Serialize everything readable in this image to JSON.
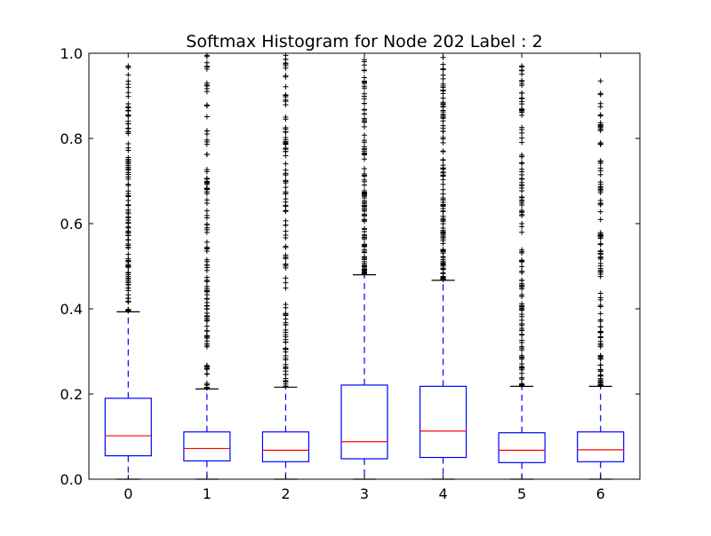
{
  "chart_data": {
    "type": "box",
    "title": "Softmax Histogram for Node 202 Label : 2",
    "xlabel": "",
    "ylabel": "",
    "ylim": [
      0.0,
      1.0
    ],
    "yticks": [
      "0.0",
      "0.2",
      "0.4",
      "0.6",
      "0.8",
      "1.0"
    ],
    "categories": [
      "0",
      "1",
      "2",
      "3",
      "4",
      "5",
      "6"
    ],
    "grid": false,
    "colors": {
      "box": "#0000ff",
      "median": "#ff0000",
      "whisker": "#0000ff",
      "cap": "#000000",
      "flier": "#000000"
    },
    "boxes": [
      {
        "label": "0",
        "whisker_low": 0.0,
        "q1": 0.055,
        "median": 0.102,
        "q3": 0.19,
        "whisker_high": 0.393,
        "fliers_range": [
          0.395,
          0.97
        ]
      },
      {
        "label": "1",
        "whisker_low": 0.0,
        "q1": 0.043,
        "median": 0.072,
        "q3": 0.111,
        "whisker_high": 0.212,
        "fliers_range": [
          0.214,
          0.995
        ]
      },
      {
        "label": "2",
        "whisker_low": 0.0,
        "q1": 0.041,
        "median": 0.068,
        "q3": 0.111,
        "whisker_high": 0.216,
        "fliers_range": [
          0.218,
          0.995
        ]
      },
      {
        "label": "3",
        "whisker_low": 0.0,
        "q1": 0.048,
        "median": 0.088,
        "q3": 0.221,
        "whisker_high": 0.48,
        "fliers_range": [
          0.482,
          0.985
        ]
      },
      {
        "label": "4",
        "whisker_low": 0.0,
        "q1": 0.051,
        "median": 0.113,
        "q3": 0.218,
        "whisker_high": 0.467,
        "fliers_range": [
          0.469,
          0.99
        ]
      },
      {
        "label": "5",
        "whisker_low": 0.0,
        "q1": 0.039,
        "median": 0.068,
        "q3": 0.109,
        "whisker_high": 0.218,
        "fliers_range": [
          0.22,
          0.97
        ]
      },
      {
        "label": "6",
        "whisker_low": 0.0,
        "q1": 0.041,
        "median": 0.069,
        "q3": 0.111,
        "whisker_high": 0.218,
        "fliers_range": [
          0.22,
          0.935
        ]
      }
    ]
  }
}
